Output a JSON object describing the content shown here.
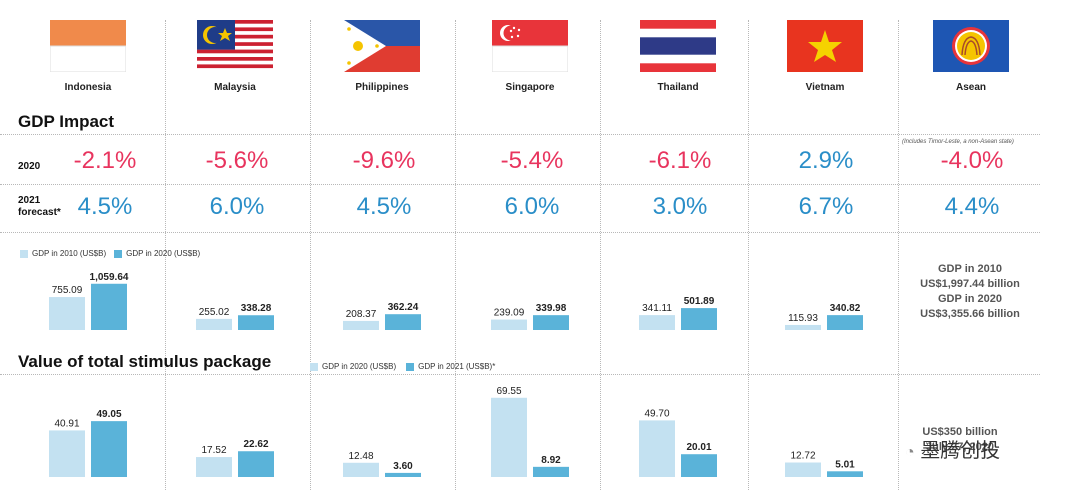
{
  "countries": [
    "Indonesia",
    "Malaysia",
    "Philippines",
    "Singapore",
    "Thailand",
    "Vietnam",
    "Asean"
  ],
  "flags": [
    "indonesia-flag",
    "malaysia-flag",
    "philippines-flag",
    "singapore-flag",
    "thailand-flag",
    "vietnam-flag",
    "asean-flag"
  ],
  "gdp_impact": {
    "title": "GDP Impact",
    "row_2020_label": "2020",
    "row_2021_label": "2021\nforecast*",
    "values_2020": [
      "-2.1%",
      "-5.6%",
      "-9.6%",
      "-5.4%",
      "-6.1%",
      "2.9%",
      "-4.0%"
    ],
    "values_2021": [
      "4.5%",
      "6.0%",
      "4.5%",
      "6.0%",
      "3.0%",
      "6.7%",
      "4.4%"
    ],
    "asean_note": "(Includes Timor-Leste, a non-Asean state)"
  },
  "colors": {
    "negative": "#e8345e",
    "positive": "#2a8ec8",
    "bar_light": "#c3e1f1",
    "bar_dark": "#5ab3d9"
  },
  "asean_gdp_summary": {
    "line1": "GDP in 2010",
    "line2": "US$1,997.44 billion",
    "line3": "GDP in 2020",
    "line4": "US$3,355.66 billion"
  },
  "stimulus": {
    "title": "Value of total stimulus package",
    "asean_line1": "US$350 billion",
    "asean_line2": "July 27, 2020"
  },
  "watermark": "墨腾创投",
  "chart_data": [
    {
      "type": "bar",
      "categories": [
        "Indonesia",
        "Malaysia",
        "Philippines",
        "Singapore",
        "Thailand",
        "Vietnam"
      ],
      "series": [
        {
          "name": "GDP in 2010 (US$B)",
          "values": [
            755.09,
            255.02,
            208.37,
            239.09,
            341.11,
            115.93
          ]
        },
        {
          "name": "GDP in 2020 (US$B)",
          "values": [
            1059.64,
            338.28,
            362.24,
            339.98,
            501.89,
            340.82
          ]
        }
      ],
      "labels": [
        [
          "755.09",
          "255.02",
          "208.37",
          "239.09",
          "341.11",
          "115.93"
        ],
        [
          "1,059.64",
          "338.28",
          "362.24",
          "339.98",
          "501.89",
          "340.82"
        ]
      ],
      "ylim": [
        0,
        1100
      ],
      "legend": "top-left"
    },
    {
      "type": "bar",
      "title": "Value of total stimulus package",
      "categories": [
        "Indonesia",
        "Malaysia",
        "Philippines",
        "Singapore",
        "Thailand",
        "Vietnam"
      ],
      "series": [
        {
          "name": "GDP in 2020  (US$B)",
          "values": [
            40.91,
            17.52,
            12.48,
            69.55,
            49.7,
            12.72
          ]
        },
        {
          "name": "GDP in 2021 (US$B)*",
          "values": [
            49.05,
            22.62,
            3.6,
            8.92,
            20.01,
            5.01
          ]
        }
      ],
      "labels": [
        [
          "40.91",
          "17.52",
          "12.48",
          "69.55",
          "49.70",
          "12.72"
        ],
        [
          "49.05",
          "22.62",
          "3.60",
          "8.92",
          "20.01",
          "5.01"
        ]
      ],
      "ylim": [
        0,
        72
      ],
      "legend": "top"
    }
  ]
}
